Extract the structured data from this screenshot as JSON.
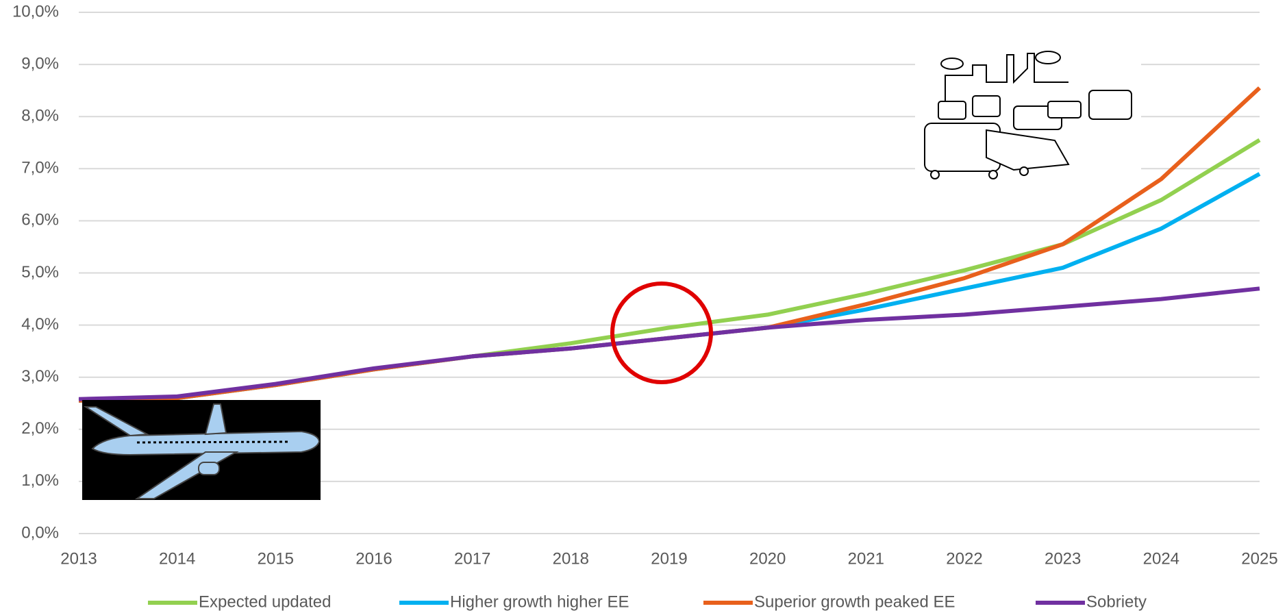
{
  "chart_data": {
    "type": "line",
    "categories": [
      "2013",
      "2014",
      "2015",
      "2016",
      "2017",
      "2018",
      "2019",
      "2020",
      "2021",
      "2022",
      "2023",
      "2024",
      "2025"
    ],
    "series": [
      {
        "name": "Expected updated",
        "color": "#92d050",
        "values": [
          2.55,
          2.6,
          2.85,
          3.15,
          3.4,
          3.65,
          3.95,
          4.2,
          4.6,
          5.05,
          5.55,
          6.4,
          7.55
        ]
      },
      {
        "name": "Higher growth higher EE",
        "color": "#00b0f0",
        "values": [
          2.55,
          2.6,
          2.85,
          3.15,
          3.4,
          3.55,
          3.75,
          3.95,
          4.3,
          4.7,
          5.1,
          5.85,
          6.9
        ]
      },
      {
        "name": "Superior growth peaked EE",
        "color": "#e8601c",
        "values": [
          2.55,
          2.6,
          2.85,
          3.15,
          3.4,
          3.55,
          3.75,
          3.95,
          4.4,
          4.9,
          5.55,
          6.8,
          8.55
        ]
      },
      {
        "name": "Sobriety",
        "color": "#7030a0",
        "values": [
          2.58,
          2.63,
          2.87,
          3.17,
          3.4,
          3.55,
          3.75,
          3.95,
          4.1,
          4.2,
          4.35,
          4.5,
          4.7
        ]
      }
    ],
    "ylim": [
      0,
      10
    ],
    "yticks": [
      {
        "value": 0,
        "label": "0,0%"
      },
      {
        "value": 1,
        "label": "1,0%"
      },
      {
        "value": 2,
        "label": "2,0%"
      },
      {
        "value": 3,
        "label": "3,0%"
      },
      {
        "value": 4,
        "label": "4,0%"
      },
      {
        "value": 5,
        "label": "5,0%"
      },
      {
        "value": 6,
        "label": "6,0%"
      },
      {
        "value": 7,
        "label": "7,0%"
      },
      {
        "value": 8,
        "label": "8,0%"
      },
      {
        "value": 9,
        "label": "9,0%"
      },
      {
        "value": 10,
        "label": "10,0%"
      }
    ],
    "grid": true,
    "legend": "bottom"
  }
}
